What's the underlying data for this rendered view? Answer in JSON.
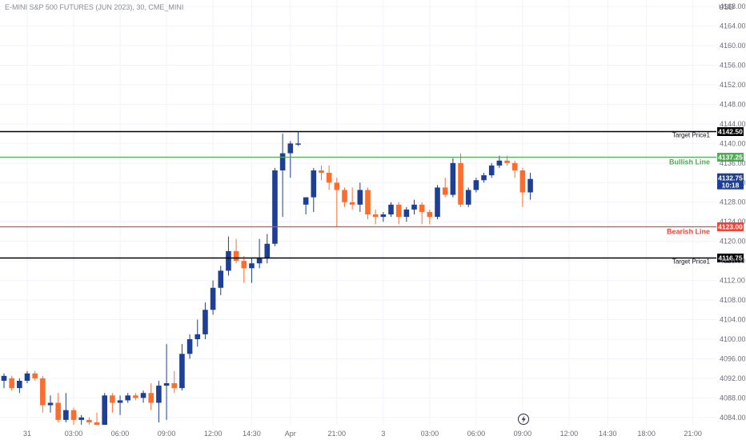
{
  "header": {
    "title": "E-MINI S&P 500 FUTURES (JUN 2023), 30, CME_MINI",
    "currency": "USD"
  },
  "colors": {
    "up": "#1e3f96",
    "down": "#ff6d2e",
    "grid": "#f0f3fa",
    "axis_text": "#6a6d78",
    "target": "#000000",
    "bullish": "#4caf50",
    "bearish": "#f44336",
    "price_badge": "#1e3f96"
  },
  "chart_data": {
    "type": "candlestick",
    "title": "E-MINI S&P 500 FUTURES (JUN 2023), 30, CME_MINI",
    "y_axis": {
      "ticks": [
        4084.0,
        4088.0,
        4092.0,
        4096.0,
        4100.0,
        4104.0,
        4108.0,
        4112.0,
        4116.0,
        4120.0,
        4124.0,
        4128.0,
        4132.0,
        4136.0,
        4140.0,
        4144.0,
        4148.0,
        4152.0,
        4156.0,
        4160.0,
        4164.0,
        4168.0
      ],
      "ylim": [
        4082.5,
        4170.0
      ],
      "position": "right",
      "unit": "USD"
    },
    "x_axis": {
      "tick_labels": [
        "31",
        "03:00",
        "06:00",
        "09:00",
        "12:00",
        "14:30",
        "Apr",
        "21:00",
        "3",
        "03:00",
        "06:00",
        "09:00",
        "12:00",
        "14:30",
        "18:00",
        "21:00"
      ],
      "tick_bar_index": [
        3,
        9,
        15,
        21,
        27,
        32,
        37,
        43,
        49,
        55,
        61,
        67,
        73,
        78,
        83,
        89
      ]
    },
    "candles": [
      {
        "o": 4091.5,
        "h": 4093.0,
        "l": 4090.0,
        "c": 4092.5
      },
      {
        "o": 4092.0,
        "h": 4092.5,
        "l": 4089.5,
        "c": 4090.0
      },
      {
        "o": 4090.0,
        "h": 4092.0,
        "l": 4089.0,
        "c": 4091.5
      },
      {
        "o": 4091.5,
        "h": 4093.5,
        "l": 4091.0,
        "c": 4093.0
      },
      {
        "o": 4093.0,
        "h": 4093.5,
        "l": 4091.5,
        "c": 4092.0
      },
      {
        "o": 4092.0,
        "h": 4092.5,
        "l": 4085.0,
        "c": 4086.5
      },
      {
        "o": 4086.5,
        "h": 4088.5,
        "l": 4085.0,
        "c": 4087.0
      },
      {
        "o": 4087.0,
        "h": 4089.0,
        "l": 4083.0,
        "c": 4083.5
      },
      {
        "o": 4083.5,
        "h": 4089.0,
        "l": 4083.0,
        "c": 4085.5
      },
      {
        "o": 4085.5,
        "h": 4086.0,
        "l": 4082.5,
        "c": 4083.5
      },
      {
        "o": 4083.5,
        "h": 4084.5,
        "l": 4082.5,
        "c": 4084.0
      },
      {
        "o": 4083.5,
        "h": 4084.0,
        "l": 4082.5,
        "c": 4083.0
      },
      {
        "o": 4083.0,
        "h": 4085.0,
        "l": 4082.5,
        "c": 4082.5
      },
      {
        "o": 4082.5,
        "h": 4089.0,
        "l": 4082.5,
        "c": 4088.5
      },
      {
        "o": 4088.5,
        "h": 4089.0,
        "l": 4085.0,
        "c": 4087.0
      },
      {
        "o": 4087.0,
        "h": 4088.5,
        "l": 4084.5,
        "c": 4087.5
      },
      {
        "o": 4087.5,
        "h": 4089.0,
        "l": 4087.0,
        "c": 4088.5
      },
      {
        "o": 4088.5,
        "h": 4089.0,
        "l": 4087.5,
        "c": 4088.0
      },
      {
        "o": 4088.0,
        "h": 4089.5,
        "l": 4087.0,
        "c": 4089.0
      },
      {
        "o": 4089.0,
        "h": 4091.0,
        "l": 4085.5,
        "c": 4087.0
      },
      {
        "o": 4087.0,
        "h": 4091.5,
        "l": 4083.0,
        "c": 4090.5
      },
      {
        "o": 4090.5,
        "h": 4099.0,
        "l": 4083.5,
        "c": 4091.0
      },
      {
        "o": 4091.0,
        "h": 4093.5,
        "l": 4089.0,
        "c": 4090.0
      },
      {
        "o": 4090.0,
        "h": 4099.0,
        "l": 4089.5,
        "c": 4097.0
      },
      {
        "o": 4097.0,
        "h": 4101.0,
        "l": 4096.0,
        "c": 4100.0
      },
      {
        "o": 4100.0,
        "h": 4104.0,
        "l": 4098.5,
        "c": 4101.0
      },
      {
        "o": 4101.0,
        "h": 4107.5,
        "l": 4100.0,
        "c": 4106.0
      },
      {
        "o": 4106.0,
        "h": 4112.0,
        "l": 4105.0,
        "c": 4110.5
      },
      {
        "o": 4110.5,
        "h": 4115.0,
        "l": 4109.0,
        "c": 4114.0
      },
      {
        "o": 4114.0,
        "h": 4121.0,
        "l": 4113.0,
        "c": 4118.0
      },
      {
        "o": 4118.0,
        "h": 4120.5,
        "l": 4115.5,
        "c": 4116.0
      },
      {
        "o": 4116.0,
        "h": 4117.0,
        "l": 4111.5,
        "c": 4114.5
      },
      {
        "o": 4114.5,
        "h": 4116.5,
        "l": 4111.5,
        "c": 4115.5
      },
      {
        "o": 4115.5,
        "h": 4120.5,
        "l": 4114.5,
        "c": 4116.5
      },
      {
        "o": 4116.5,
        "h": 4121.5,
        "l": 4115.5,
        "c": 4119.5
      },
      {
        "o": 4119.5,
        "h": 4135.0,
        "l": 4119.0,
        "c": 4134.5
      },
      {
        "o": 4134.5,
        "h": 4142.0,
        "l": 4125.0,
        "c": 4138.0
      },
      {
        "o": 4138.0,
        "h": 4140.5,
        "l": 4133.0,
        "c": 4140.0
      },
      {
        "o": 4140.0,
        "h": 4142.5,
        "l": 4139.5,
        "c": 4140.0
      },
      {
        "o": 4127.5,
        "h": 4129.0,
        "l": 4125.5,
        "c": 4129.0
      },
      {
        "o": 4129.0,
        "h": 4135.0,
        "l": 4126.0,
        "c": 4134.5
      },
      {
        "o": 4134.5,
        "h": 4135.5,
        "l": 4132.5,
        "c": 4134.0
      },
      {
        "o": 4134.0,
        "h": 4135.5,
        "l": 4130.5,
        "c": 4132.0
      },
      {
        "o": 4132.0,
        "h": 4133.0,
        "l": 4123.0,
        "c": 4130.5
      },
      {
        "o": 4130.5,
        "h": 4131.0,
        "l": 4127.0,
        "c": 4128.0
      },
      {
        "o": 4128.0,
        "h": 4131.0,
        "l": 4126.5,
        "c": 4127.5
      },
      {
        "o": 4127.5,
        "h": 4132.0,
        "l": 4126.0,
        "c": 4130.5
      },
      {
        "o": 4130.5,
        "h": 4131.0,
        "l": 4124.5,
        "c": 4125.5
      },
      {
        "o": 4125.5,
        "h": 4126.5,
        "l": 4123.5,
        "c": 4125.0
      },
      {
        "o": 4125.0,
        "h": 4126.0,
        "l": 4124.0,
        "c": 4125.5
      },
      {
        "o": 4125.5,
        "h": 4128.0,
        "l": 4125.0,
        "c": 4127.5
      },
      {
        "o": 4127.5,
        "h": 4128.0,
        "l": 4123.5,
        "c": 4125.0
      },
      {
        "o": 4125.0,
        "h": 4127.0,
        "l": 4124.0,
        "c": 4126.5
      },
      {
        "o": 4126.5,
        "h": 4128.5,
        "l": 4125.5,
        "c": 4127.5
      },
      {
        "o": 4127.5,
        "h": 4128.0,
        "l": 4123.5,
        "c": 4126.0
      },
      {
        "o": 4126.0,
        "h": 4126.5,
        "l": 4123.5,
        "c": 4125.0
      },
      {
        "o": 4125.0,
        "h": 4131.5,
        "l": 4124.5,
        "c": 4131.0
      },
      {
        "o": 4131.0,
        "h": 4133.0,
        "l": 4129.0,
        "c": 4129.5
      },
      {
        "o": 4129.5,
        "h": 4137.0,
        "l": 4129.0,
        "c": 4136.0
      },
      {
        "o": 4136.0,
        "h": 4138.0,
        "l": 4127.0,
        "c": 4127.5
      },
      {
        "o": 4127.5,
        "h": 4131.0,
        "l": 4127.0,
        "c": 4130.5
      },
      {
        "o": 4130.5,
        "h": 4133.0,
        "l": 4130.0,
        "c": 4132.5
      },
      {
        "o": 4132.5,
        "h": 4134.0,
        "l": 4132.0,
        "c": 4133.5
      },
      {
        "o": 4133.5,
        "h": 4136.0,
        "l": 4133.0,
        "c": 4135.5
      },
      {
        "o": 4135.5,
        "h": 4137.5,
        "l": 4135.0,
        "c": 4136.5
      },
      {
        "o": 4136.5,
        "h": 4137.5,
        "l": 4135.5,
        "c": 4136.0
      },
      {
        "o": 4136.0,
        "h": 4136.5,
        "l": 4133.0,
        "c": 4134.5
      },
      {
        "o": 4134.5,
        "h": 4135.0,
        "l": 4127.0,
        "c": 4130.0
      },
      {
        "o": 4130.0,
        "h": 4134.0,
        "l": 4128.5,
        "c": 4132.75
      }
    ],
    "levels": [
      {
        "name": "Target Price1",
        "label": "Target Price1",
        "price": 4142.5,
        "badge": "4142.50",
        "color": "#000000"
      },
      {
        "name": "Bullish Line",
        "label": "Bullish Line",
        "price": 4137.25,
        "badge": "4137.25",
        "color": "#4caf50"
      },
      {
        "name": "Bearish Line",
        "label": "Bearish Line",
        "price": 4123.0,
        "badge": "4123.00",
        "color": "#f44336"
      },
      {
        "name": "Target Price1",
        "label": "Target Price1",
        "price": 4116.75,
        "badge": "4116.75",
        "color": "#000000"
      }
    ],
    "last_price": {
      "price": 4132.75,
      "badge": "4132.75",
      "countdown": "10:18"
    },
    "grid": true,
    "legend": "none"
  }
}
